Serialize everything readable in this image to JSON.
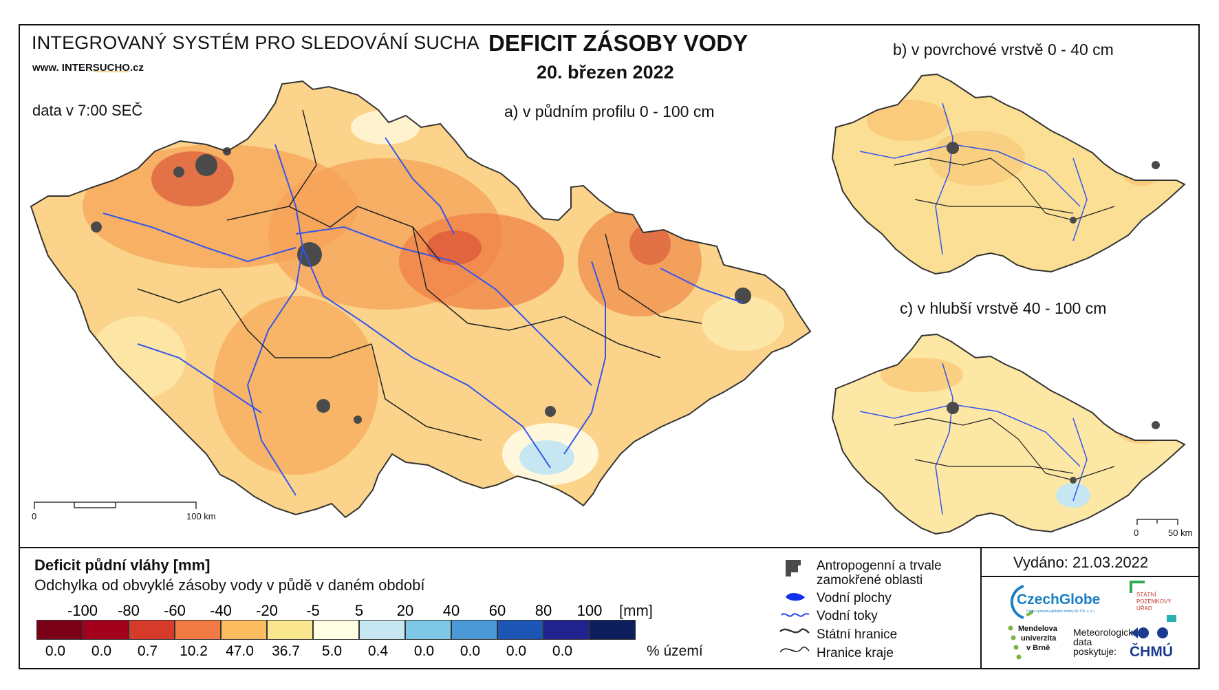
{
  "header": {
    "system_title": "INTEGROVANÝ SYSTÉM PRO SLEDOVÁNÍ SUCHA",
    "website_prefix": "www. INTER",
    "website_sucha": "SUCHO",
    "website_suffix": ".cz",
    "data_time": "data v 7:00 SEČ",
    "main_title": "DEFICIT ZÁSOBY VODY",
    "date": "20. březen 2022"
  },
  "maps": {
    "a_label": "a) v půdním profilu 0 - 100 cm",
    "b_label": "b) v povrchové vrstvě 0 - 40 cm",
    "c_label": "c) v hlubší vrstvě 40 - 100 cm",
    "scale_main": {
      "zero": "0",
      "max": "100 km"
    },
    "scale_small": {
      "zero": "0",
      "max": "50 km"
    }
  },
  "legend": {
    "title": "Deficit půdní vláhy  [mm]",
    "subtitle": "Odchylka od obvyklé zásoby vody v půdě v daném období",
    "thresholds": [
      "-100",
      "-80",
      "-60",
      "-40",
      "-20",
      "-5",
      "5",
      "20",
      "40",
      "60",
      "80",
      "100"
    ],
    "unit": "[mm]",
    "colors": [
      "#7a0018",
      "#a3001e",
      "#d63a2a",
      "#f27b45",
      "#fbbd60",
      "#fbe690",
      "#fffde2",
      "#c6e6f2",
      "#7ec7e6",
      "#4c99d8",
      "#1d55b5",
      "#23238f",
      "#0c1e5c"
    ],
    "percent_values": [
      "0.0",
      "0.0",
      "0.7",
      "10.2",
      "47.0",
      "36.7",
      "5.0",
      "0.4",
      "0.0",
      "0.0",
      "0.0",
      "0.0"
    ],
    "percent_unit": "% území"
  },
  "key": {
    "anthropogenic": "Antropogenní a trvale",
    "anthropogenic_2": "zamokřené oblasti",
    "water_bodies": "Vodní plochy",
    "water_streams": "Vodní toky",
    "state_border": "Státní hranice",
    "region_border": "Hranice kraje"
  },
  "issued": "Vydáno: 21.03.2022",
  "logos": {
    "czechglobe": "CzechGlobe",
    "czechglobe_sub": "Ústav výzkumu globální změny AV ČR, v. v. i.",
    "spu_1": "STÁTNÍ",
    "spu_2": "POZEMKOVÝ",
    "spu_3": "ÚŘAD",
    "mendel_1": "Mendelova",
    "mendel_2": "univerzita",
    "mendel_3": "v Brně",
    "meteo_1": "Meteorologická",
    "meteo_2": "data",
    "meteo_3": "poskytuje:",
    "chmu": "ČHMÚ"
  }
}
